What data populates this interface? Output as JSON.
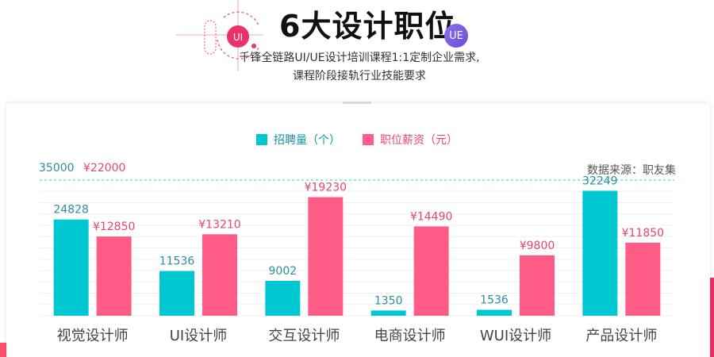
{
  "header": {
    "title": "6大设计职位",
    "badge_ui": "UI",
    "badge_ue": "UE",
    "subtitle_line1": "千锋全链路UI/UE设计培训课程1:1定制企业需求,",
    "subtitle_line2": "课程阶段接轨行业技能要求"
  },
  "legend": {
    "series1": "招聘量（个）",
    "series2": "职位薪资（元）"
  },
  "axis": {
    "left_max_label": "35000",
    "right_max_label": "¥22000"
  },
  "source_label": "数据来源：职友集",
  "colors": {
    "series1": "#00c8d2",
    "series2": "#ff5b87",
    "accent_red": "#e9326b"
  },
  "chart_data": {
    "type": "bar",
    "categories": [
      "视觉设计师",
      "UI设计师",
      "交互设计师",
      "电商设计师",
      "WUI设计师",
      "产品设计师"
    ],
    "series": [
      {
        "name": "招聘量（个）",
        "values": [
          24828,
          11536,
          9002,
          1350,
          1536,
          32249
        ],
        "labels": [
          "24828",
          "11536",
          "9002",
          "1350",
          "1536",
          "32249"
        ],
        "max": 35000
      },
      {
        "name": "职位薪资（元）",
        "values": [
          12850,
          13210,
          19230,
          14490,
          9800,
          11850
        ],
        "labels": [
          "¥12850",
          "¥13210",
          "¥19230",
          "¥14490",
          "¥9800",
          "¥11850"
        ],
        "max": 22000
      }
    ]
  }
}
